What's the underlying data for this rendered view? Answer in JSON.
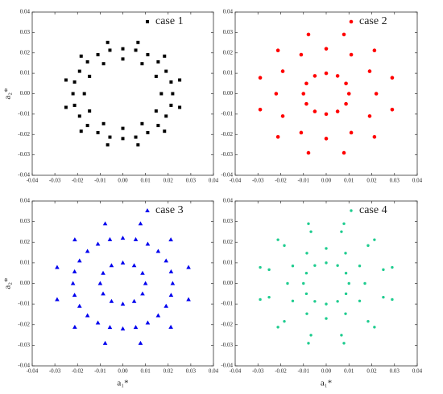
{
  "chart_data": [
    {
      "type": "scatter",
      "ylabel": "a₂*",
      "marker": "square",
      "series": [
        {
          "name": "case 1",
          "color": "#000000",
          "x": [
            0.022,
            0.0213,
            0.0191,
            0.0156,
            0.011,
            0.0057,
            0,
            -0.0057,
            -0.011,
            -0.0156,
            -0.0191,
            -0.0213,
            -0.022,
            -0.0213,
            -0.0191,
            -0.0156,
            -0.011,
            -0.0057,
            0,
            0.0057,
            0.011,
            0.0156,
            0.0191,
            0.0213,
            0.017,
            0.0147,
            0.0085,
            0,
            -0.0085,
            -0.0147,
            -0.017,
            -0.0147,
            -0.0085,
            0,
            0.0085,
            0.0147,
            0.0251,
            0.0184,
            0.0067,
            -0.0067,
            -0.0184,
            -0.0251,
            -0.0251,
            -0.0184,
            -0.0067,
            0.0067,
            0.0184,
            0.0251
          ],
          "y": [
            0,
            0.0057,
            0.011,
            0.0156,
            0.0191,
            0.0213,
            0.022,
            0.0213,
            0.0191,
            0.0156,
            0.011,
            0.0057,
            0,
            -0.0057,
            -0.011,
            -0.0156,
            -0.0191,
            -0.0213,
            -0.022,
            -0.0213,
            -0.0191,
            -0.0156,
            -0.011,
            -0.0057,
            0,
            0.0085,
            0.0147,
            0.017,
            0.0147,
            0.0085,
            0,
            -0.0085,
            -0.0147,
            -0.017,
            -0.0147,
            -0.0085,
            0.0067,
            0.0184,
            0.0251,
            0.0251,
            0.0184,
            0.0067,
            -0.0067,
            -0.0184,
            -0.0251,
            -0.0251,
            -0.0184,
            -0.0067
          ]
        }
      ],
      "xlim": [
        -0.04,
        0.04
      ],
      "ylim": [
        -0.04,
        0.04
      ],
      "xticks": [
        -0.04,
        -0.03,
        -0.02,
        -0.01,
        {
          "value": 0,
          "label": "0.00"
        },
        0.01,
        0.02,
        0.03,
        0.04
      ],
      "yticks": [
        -0.04,
        -0.03,
        -0.02,
        -0.01,
        {
          "value": 0,
          "label": "0.00"
        },
        0.01,
        0.02,
        0.03,
        0.04
      ]
    },
    {
      "type": "scatter",
      "marker": "circle",
      "series": [
        {
          "name": "case 2",
          "color": "#ff0000",
          "x": [
            0.029,
            0.0212,
            0.0078,
            -0.0078,
            -0.0212,
            -0.029,
            -0.029,
            -0.0212,
            -0.0078,
            0.0078,
            0.0212,
            0.029,
            0.022,
            0.0191,
            0.011,
            0,
            -0.011,
            -0.0191,
            -0.022,
            -0.0191,
            -0.011,
            0,
            0.011,
            0.0191,
            0.01,
            0.0087,
            0.005,
            0,
            -0.005,
            -0.0087,
            -0.01,
            -0.0087,
            -0.005,
            0,
            0.005,
            0.0087
          ],
          "y": [
            0.0078,
            0.0212,
            0.029,
            0.029,
            0.0212,
            0.0078,
            -0.0078,
            -0.0212,
            -0.029,
            -0.029,
            -0.0212,
            -0.0078,
            0,
            0.011,
            0.0191,
            0.022,
            0.0191,
            0.011,
            0,
            -0.011,
            -0.0191,
            -0.022,
            -0.0191,
            -0.011,
            0,
            0.005,
            0.0087,
            0.01,
            0.0087,
            0.005,
            0,
            -0.005,
            -0.0087,
            -0.01,
            -0.0087,
            -0.005
          ]
        }
      ],
      "xlim": [
        -0.04,
        0.04
      ],
      "ylim": [
        -0.04,
        0.04
      ],
      "xticks": [
        -0.04,
        -0.03,
        -0.02,
        -0.01,
        {
          "value": 0,
          "label": "0.00"
        },
        0.01,
        0.02,
        0.03,
        0.04
      ],
      "yticks": [
        -0.04,
        -0.03,
        -0.02,
        -0.01,
        {
          "value": 0,
          "label": "0.00"
        },
        0.01,
        0.02,
        0.03,
        0.04
      ]
    },
    {
      "type": "scatter",
      "xlabel": "a₁*",
      "ylabel": "a₂*",
      "marker": "triangle",
      "series": [
        {
          "name": "case 3",
          "color": "#0000ee",
          "x": [
            0.029,
            0.0212,
            0.0078,
            -0.0078,
            -0.0212,
            -0.029,
            -0.029,
            -0.0212,
            -0.0078,
            0.0078,
            0.0212,
            0.029,
            0.022,
            0.0213,
            0.0191,
            0.0156,
            0.011,
            0.0057,
            0,
            -0.0057,
            -0.011,
            -0.0156,
            -0.0191,
            -0.0213,
            -0.022,
            -0.0213,
            -0.0191,
            -0.0156,
            -0.011,
            -0.0057,
            0,
            0.0057,
            0.011,
            0.0156,
            0.0191,
            0.0213,
            0.01,
            0.0087,
            0.005,
            0,
            -0.005,
            -0.0087,
            -0.01,
            -0.0087,
            -0.005,
            0,
            0.005,
            0.0087
          ],
          "y": [
            0.0078,
            0.0212,
            0.029,
            0.029,
            0.0212,
            0.0078,
            -0.0078,
            -0.0212,
            -0.029,
            -0.029,
            -0.0212,
            -0.0078,
            0,
            0.0057,
            0.011,
            0.0156,
            0.0191,
            0.0213,
            0.022,
            0.0213,
            0.0191,
            0.0156,
            0.011,
            0.0057,
            0,
            -0.0057,
            -0.011,
            -0.0156,
            -0.0191,
            -0.0213,
            -0.022,
            -0.0213,
            -0.0191,
            -0.0156,
            -0.011,
            -0.0057,
            0,
            0.005,
            0.0087,
            0.01,
            0.0087,
            0.005,
            0,
            -0.005,
            -0.0087,
            -0.01,
            -0.0087,
            -0.005
          ]
        }
      ],
      "xlim": [
        -0.04,
        0.04
      ],
      "ylim": [
        -0.04,
        0.04
      ],
      "xticks": [
        -0.04,
        -0.03,
        -0.02,
        -0.01,
        {
          "value": 0,
          "label": "0.00"
        },
        0.01,
        0.02,
        0.03,
        0.04
      ],
      "yticks": [
        -0.04,
        -0.03,
        -0.02,
        -0.01,
        {
          "value": 0,
          "label": "0.00"
        },
        0.01,
        0.02,
        0.03,
        0.04
      ]
    },
    {
      "type": "scatter",
      "xlabel": "a₁*",
      "marker": "dot",
      "series": [
        {
          "name": "case 4",
          "color": "#1fcc8f",
          "x": [
            0.029,
            0.0212,
            0.0078,
            -0.0078,
            -0.0212,
            -0.029,
            -0.029,
            -0.0212,
            -0.0078,
            0.0078,
            0.0212,
            0.029,
            0.017,
            0.0147,
            0.0085,
            0,
            -0.0085,
            -0.0147,
            -0.017,
            -0.0147,
            -0.0085,
            0,
            0.0085,
            0.0147,
            0.01,
            0.0087,
            0.005,
            0,
            -0.005,
            -0.0087,
            -0.01,
            -0.0087,
            -0.005,
            0,
            0.005,
            0.0087,
            0.0251,
            0.0184,
            0.0067,
            -0.0067,
            -0.0184,
            -0.0251,
            -0.0251,
            -0.0184,
            -0.0067,
            0.0067,
            0.0184,
            0.0251
          ],
          "y": [
            0.0078,
            0.0212,
            0.029,
            0.029,
            0.0212,
            0.0078,
            -0.0078,
            -0.0212,
            -0.029,
            -0.029,
            -0.0212,
            -0.0078,
            0,
            0.0085,
            0.0147,
            0.017,
            0.0147,
            0.0085,
            0,
            -0.0085,
            -0.0147,
            -0.017,
            -0.0147,
            -0.0085,
            0,
            0.005,
            0.0087,
            0.01,
            0.0087,
            0.005,
            0,
            -0.005,
            -0.0087,
            -0.01,
            -0.0087,
            -0.005,
            0.0067,
            0.0184,
            0.0251,
            0.0251,
            0.0184,
            0.0067,
            -0.0067,
            -0.0184,
            -0.0251,
            -0.0251,
            -0.0184,
            -0.0067
          ]
        }
      ],
      "xlim": [
        -0.04,
        0.04
      ],
      "ylim": [
        -0.04,
        0.04
      ],
      "xticks": [
        -0.04,
        -0.03,
        -0.02,
        -0.01,
        {
          "value": 0,
          "label": "0.00"
        },
        0.01,
        0.02,
        0.03,
        0.04
      ],
      "yticks": [
        -0.04,
        -0.03,
        -0.02,
        -0.01,
        {
          "value": 0,
          "label": "0.00"
        },
        0.01,
        0.02,
        0.03,
        0.04
      ]
    }
  ]
}
